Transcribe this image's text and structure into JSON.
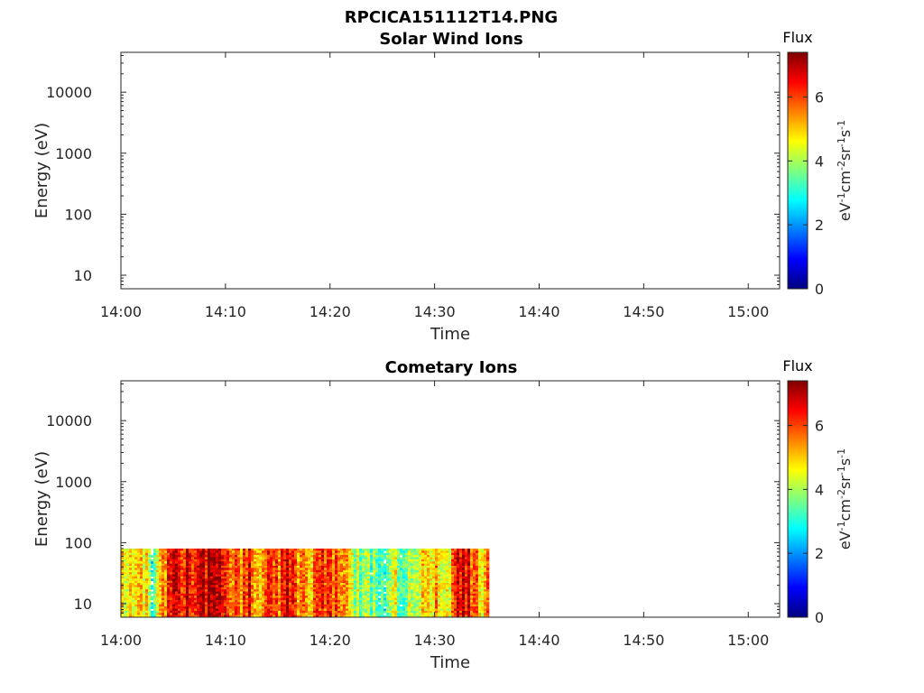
{
  "figure_title": "RPCICA151112T14.PNG",
  "colorscale": [
    "#00007f",
    "#0000ff",
    "#007fff",
    "#00ffff",
    "#7fff7f",
    "#ffff00",
    "#ff7f00",
    "#ff0000",
    "#7f0000"
  ],
  "chart_data": [
    {
      "type": "heatmap",
      "title": "Solar Wind Ions",
      "xlabel": "Time",
      "ylabel": "Energy (eV)",
      "x_ticks": [
        "14:00",
        "14:10",
        "14:20",
        "14:30",
        "14:40",
        "14:50",
        "15:00"
      ],
      "x_range_minutes": [
        0,
        63
      ],
      "y_scale": "log",
      "y_ticks": [
        "10",
        "100",
        "1000",
        "10000"
      ],
      "y_range": [
        6,
        45000
      ],
      "colorbar": {
        "title": "Flux",
        "label": "eV-1cm-2sr-1s-1",
        "ticks": [
          "0",
          "2",
          "4",
          "6"
        ],
        "range": [
          0,
          7.4
        ]
      },
      "data": "none (empty)"
    },
    {
      "type": "heatmap",
      "title": "Cometary Ions",
      "xlabel": "Time",
      "ylabel": "Energy (eV)",
      "x_ticks": [
        "14:00",
        "14:10",
        "14:20",
        "14:30",
        "14:40",
        "14:50",
        "15:00"
      ],
      "x_range_minutes": [
        0,
        63
      ],
      "y_scale": "log",
      "y_ticks": [
        "10",
        "100",
        "1000",
        "10000"
      ],
      "y_range": [
        6,
        45000
      ],
      "colorbar": {
        "title": "Flux",
        "label": "eV-1cm-2sr-1s-1",
        "ticks": [
          "0",
          "2",
          "4",
          "6"
        ],
        "range": [
          0,
          7.4
        ]
      },
      "data_extent": {
        "time_minutes": [
          0,
          35
        ],
        "energy_ev": [
          6,
          80
        ]
      },
      "flux_by_minute": [
        4.8,
        4.3,
        4.9,
        3.2,
        5.5,
        6.4,
        6.8,
        6.5,
        6.9,
        6.7,
        6.3,
        5.6,
        6.5,
        5.2,
        6.2,
        5.9,
        6.6,
        5.4,
        4.9,
        6.4,
        6.2,
        4.9,
        4.3,
        3.4,
        4.0,
        3.4,
        4.2,
        3.6,
        3.9,
        4.7,
        5.4,
        3.8,
        6.3,
        6.9,
        5.2
      ]
    }
  ]
}
